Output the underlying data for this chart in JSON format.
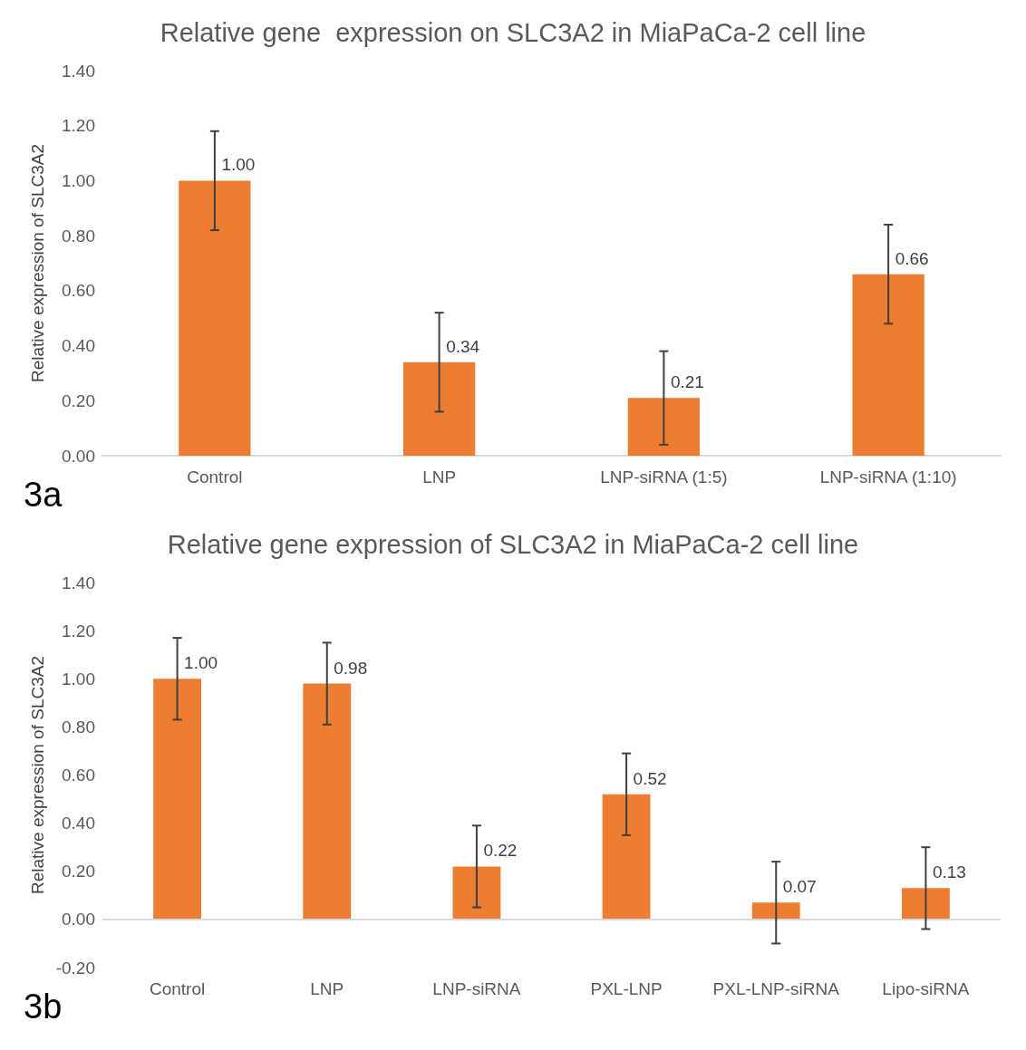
{
  "chart_data": [
    {
      "type": "bar",
      "title": "Relative gene  expression on SLC3A2 in MiaPaCa-2 cell line",
      "ylabel": "Relative expression of SLC3A2",
      "categories": [
        "Control",
        "LNP",
        "LNP-siRNA (1:5)",
        "LNP-siRNA (1:10)"
      ],
      "values": [
        1.0,
        0.34,
        0.21,
        0.66
      ],
      "value_labels": [
        "1.00",
        "0.34",
        "0.21",
        "0.66"
      ],
      "errors": [
        0.18,
        0.18,
        0.17,
        0.18
      ],
      "color": "#ed7d31",
      "ylim": [
        0,
        1.4
      ],
      "yticks": [
        {
          "value": 0,
          "label": "0.00"
        },
        {
          "value": 0.2,
          "label": "0.20"
        },
        {
          "value": 0.4,
          "label": "0.40"
        },
        {
          "value": 0.6,
          "label": "0.60"
        },
        {
          "value": 0.8,
          "label": "0.80"
        },
        {
          "value": 1.0,
          "label": "1.00"
        },
        {
          "value": 1.2,
          "label": "1.20"
        },
        {
          "value": 1.4,
          "label": "1.40"
        }
      ],
      "grid": false,
      "annotations": [
        "3a"
      ]
    },
    {
      "type": "bar",
      "title": "Relative gene expression of SLC3A2 in MiaPaCa-2 cell line",
      "ylabel": "Relative expression of SLC3A2",
      "categories": [
        "Control",
        "LNP",
        "LNP-siRNA",
        "PXL-LNP",
        "PXL-LNP-siRNA",
        "Lipo-siRNA"
      ],
      "values": [
        1.0,
        0.98,
        0.22,
        0.52,
        0.07,
        0.13
      ],
      "value_labels": [
        "1.00",
        "0.98",
        "0.22",
        "0.52",
        "0.07",
        "0.13"
      ],
      "errors": [
        0.17,
        0.17,
        0.17,
        0.17,
        0.17,
        0.17
      ],
      "color": "#ed7d31",
      "ylim": [
        -0.2,
        1.4
      ],
      "yticks": [
        {
          "value": -0.2,
          "label": "-0.20"
        },
        {
          "value": 0,
          "label": "0.00"
        },
        {
          "value": 0.2,
          "label": "0.20"
        },
        {
          "value": 0.4,
          "label": "0.40"
        },
        {
          "value": 0.6,
          "label": "0.60"
        },
        {
          "value": 0.8,
          "label": "0.80"
        },
        {
          "value": 1.0,
          "label": "1.00"
        },
        {
          "value": 1.2,
          "label": "1.20"
        },
        {
          "value": 1.4,
          "label": "1.40"
        }
      ],
      "grid": false,
      "ref_lines": [
        {
          "axis": "y",
          "value": 0,
          "color": "#d9d9d9"
        }
      ],
      "annotations": [
        "3b"
      ]
    }
  ]
}
